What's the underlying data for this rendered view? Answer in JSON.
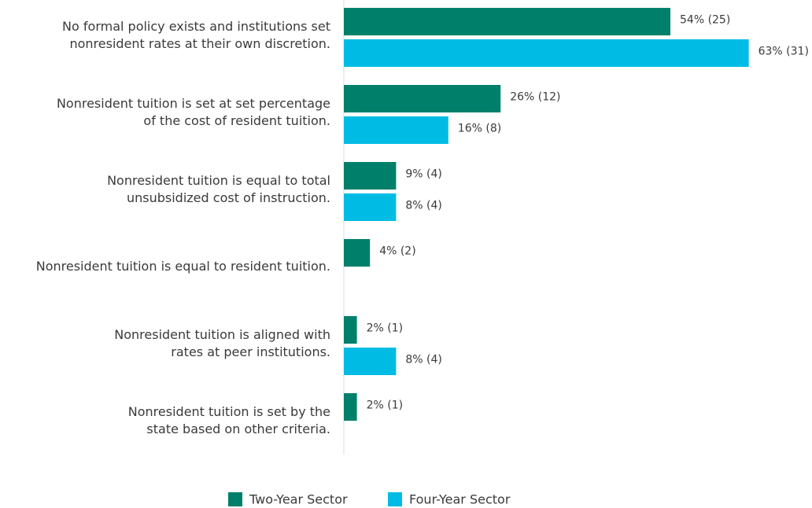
{
  "chart_data": {
    "type": "bar",
    "orientation": "horizontal",
    "categories": [
      "No formal policy exists and institutions set\nnonresident rates at their own discretion.",
      "Nonresident tuition is set at set percentage\nof the cost of resident tuition.",
      "Nonresident tuition is equal to total\nunsubsidized cost of instruction.",
      "Nonresident tuition is equal to resident tuition.",
      "Nonresident tuition is aligned with\nrates at peer institutions.",
      "Nonresident tuition is set by the\nstate based on other criteria."
    ],
    "series": [
      {
        "name": "Two-Year Sector",
        "color": "#00806a",
        "values": [
          25,
          12,
          4,
          2,
          1,
          1
        ],
        "value_labels": [
          "54% (25)",
          "26% (12)",
          "9% (4)",
          "4% (2)",
          "2% (1)",
          "2% (1)"
        ]
      },
      {
        "name": "Four-Year Sector",
        "color": "#00bce4",
        "values": [
          31,
          8,
          4,
          null,
          4,
          null
        ],
        "value_labels": [
          "63% (31)",
          "16% (8)",
          "8% (4)",
          null,
          "8% (4)",
          null
        ]
      }
    ],
    "legend": "bottom"
  }
}
